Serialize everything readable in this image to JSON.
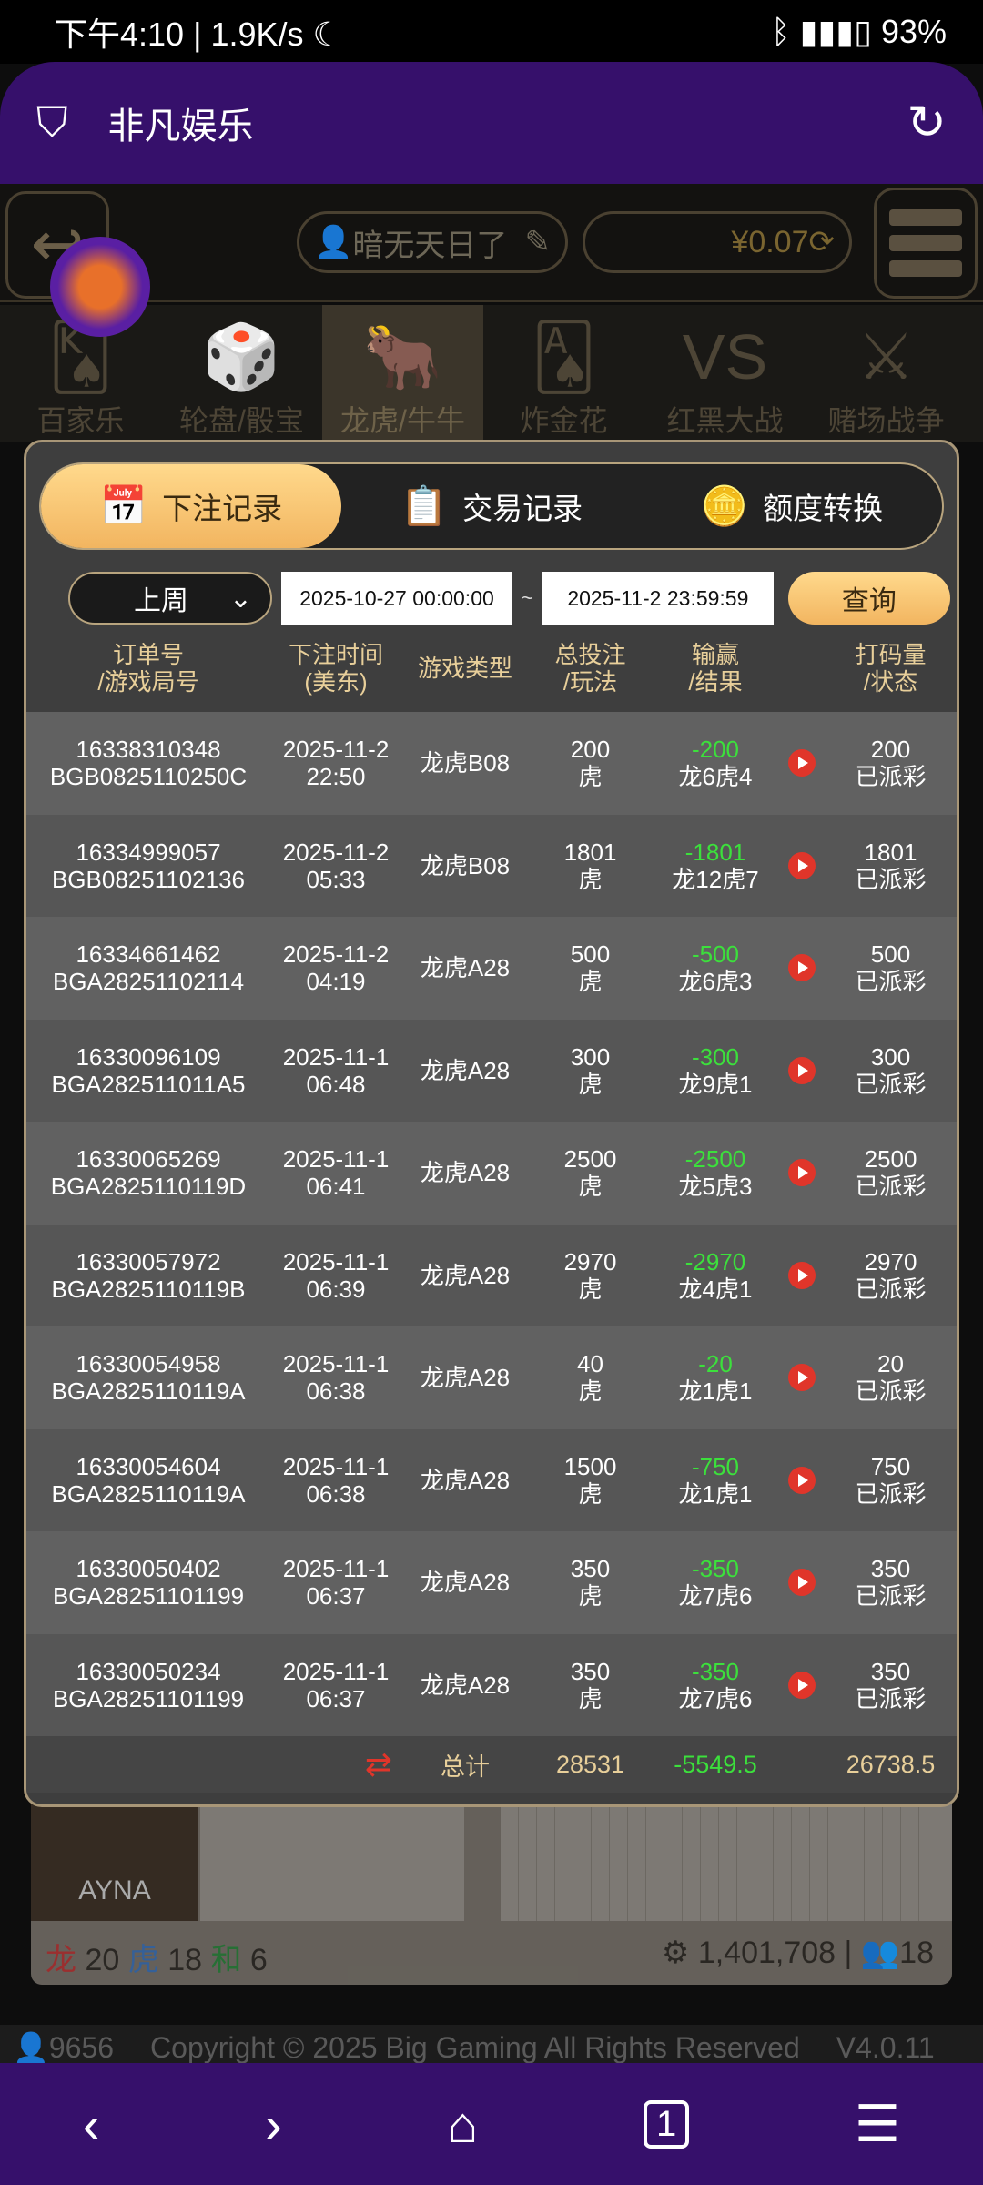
{
  "status_bar": {
    "time": "下午4:10",
    "speed": "1.9K/s",
    "battery": "93%"
  },
  "header": {
    "title": "非凡娱乐",
    "icon": "shield-check-icon",
    "refresh_icon": "refresh-icon"
  },
  "topbar": {
    "username": "暗无天日了",
    "balance": "¥0.07"
  },
  "games": [
    {
      "label": "百家乐",
      "icon": "🂮"
    },
    {
      "label": "轮盘/骰宝",
      "icon": "🎲"
    },
    {
      "label": "龙虎/牛牛",
      "icon": "🐂"
    },
    {
      "label": "炸金花",
      "icon": "🂡"
    },
    {
      "label": "红黑大战",
      "icon": "VS"
    },
    {
      "label": "赌场战争",
      "icon": "⚔"
    }
  ],
  "modal": {
    "tabs": [
      {
        "label": "下注记录",
        "icon": "calendar-icon"
      },
      {
        "label": "交易记录",
        "icon": "clipboard-icon"
      },
      {
        "label": "额度转换",
        "icon": "coins-icon"
      }
    ],
    "filter": {
      "period": "上周",
      "start": "2025-10-27 00:00:00",
      "end": "2025-11-2 23:59:59",
      "separator": "~",
      "query": "查询"
    },
    "columns": [
      [
        "订单号",
        "/游戏局号"
      ],
      [
        "下注时间",
        "(美东)"
      ],
      [
        "游戏类型"
      ],
      [
        "总投注",
        "/玩法"
      ],
      [
        "输赢",
        "/结果"
      ],
      [],
      [
        "打码量",
        "/状态"
      ]
    ],
    "rows": [
      {
        "order": "16338310348",
        "round": "BGB0825110250C",
        "date": "2025-11-2",
        "time": "22:50",
        "game": "龙虎B08",
        "bet": "200",
        "play": "虎",
        "win": "-200",
        "result": "龙6虎4",
        "valid": "200",
        "status": "已派彩"
      },
      {
        "order": "16334999057",
        "round": "BGB08251102136",
        "date": "2025-11-2",
        "time": "05:33",
        "game": "龙虎B08",
        "bet": "1801",
        "play": "虎",
        "win": "-1801",
        "result": "龙12虎7",
        "valid": "1801",
        "status": "已派彩"
      },
      {
        "order": "16334661462",
        "round": "BGA28251102114",
        "date": "2025-11-2",
        "time": "04:19",
        "game": "龙虎A28",
        "bet": "500",
        "play": "虎",
        "win": "-500",
        "result": "龙6虎3",
        "valid": "500",
        "status": "已派彩"
      },
      {
        "order": "16330096109",
        "round": "BGA282511011A5",
        "date": "2025-11-1",
        "time": "06:48",
        "game": "龙虎A28",
        "bet": "300",
        "play": "虎",
        "win": "-300",
        "result": "龙9虎1",
        "valid": "300",
        "status": "已派彩"
      },
      {
        "order": "16330065269",
        "round": "BGA2825110119D",
        "date": "2025-11-1",
        "time": "06:41",
        "game": "龙虎A28",
        "bet": "2500",
        "play": "虎",
        "win": "-2500",
        "result": "龙5虎3",
        "valid": "2500",
        "status": "已派彩"
      },
      {
        "order": "16330057972",
        "round": "BGA2825110119B",
        "date": "2025-11-1",
        "time": "06:39",
        "game": "龙虎A28",
        "bet": "2970",
        "play": "虎",
        "win": "-2970",
        "result": "龙4虎1",
        "valid": "2970",
        "status": "已派彩"
      },
      {
        "order": "16330054958",
        "round": "BGA2825110119A",
        "date": "2025-11-1",
        "time": "06:38",
        "game": "龙虎A28",
        "bet": "40",
        "play": "虎",
        "win": "-20",
        "result": "龙1虎1",
        "valid": "20",
        "status": "已派彩"
      },
      {
        "order": "16330054604",
        "round": "BGA2825110119A",
        "date": "2025-11-1",
        "time": "06:38",
        "game": "龙虎A28",
        "bet": "1500",
        "play": "虎",
        "win": "-750",
        "result": "龙1虎1",
        "valid": "750",
        "status": "已派彩"
      },
      {
        "order": "16330050402",
        "round": "BGA28251101199",
        "date": "2025-11-1",
        "time": "06:37",
        "game": "龙虎A28",
        "bet": "350",
        "play": "虎",
        "win": "-350",
        "result": "龙7虎6",
        "valid": "350",
        "status": "已派彩"
      },
      {
        "order": "16330050234",
        "round": "BGA28251101199",
        "date": "2025-11-1",
        "time": "06:37",
        "game": "龙虎A28",
        "bet": "350",
        "play": "虎",
        "win": "-350",
        "result": "龙7虎6",
        "valid": "350",
        "status": "已派彩"
      }
    ],
    "total": {
      "label": "总计",
      "bet": "28531",
      "win": "-5549.5",
      "valid": "26738.5"
    }
  },
  "background_card": {
    "dealer": "AYNA",
    "dragon_label": "龙",
    "dragon": "20",
    "tiger_label": "虎",
    "tiger": "18",
    "tie_label": "和",
    "tie": "6",
    "pool": "1,401,708",
    "players": "18"
  },
  "footer": {
    "online": "9656",
    "copyright": "Copyright © 2025 Big Gaming All Rights Reserved",
    "version": "V4.0.11"
  },
  "colors": {
    "header_purple": "#36106b",
    "gold": "#f2b560",
    "win_green": "#3ce03c",
    "play_red": "#e0352a"
  }
}
